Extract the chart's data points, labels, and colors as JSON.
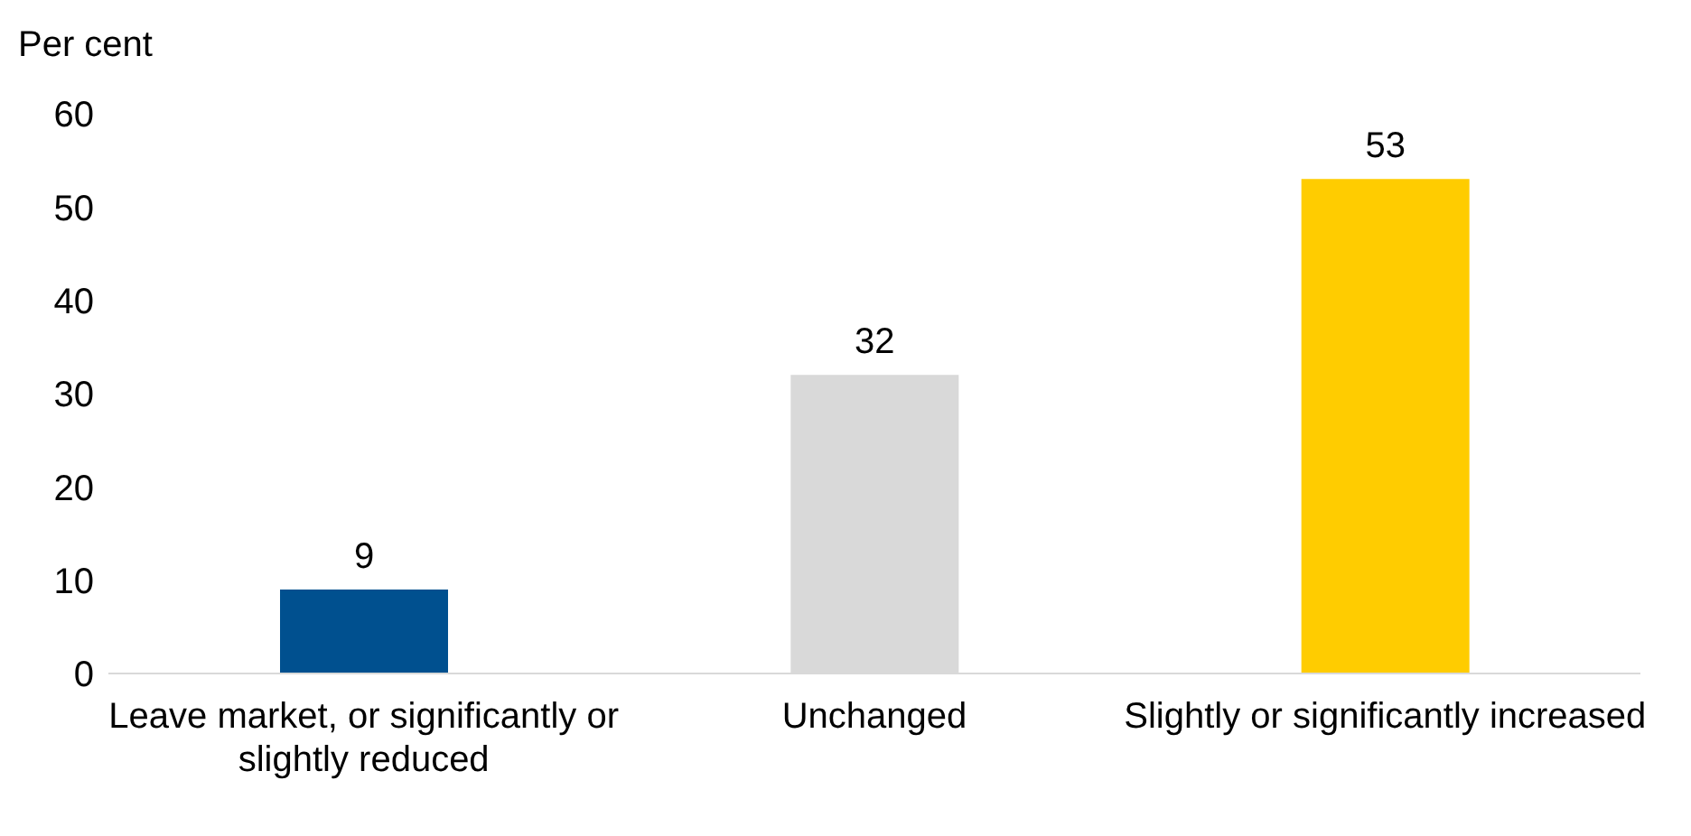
{
  "chart_data": {
    "type": "bar",
    "ylabel": "Per cent",
    "categories": [
      "Leave market, or significantly or slightly reduced",
      "Unchanged",
      "Slightly or significantly increased"
    ],
    "values": [
      9,
      32,
      53
    ],
    "colors": [
      "#00508f",
      "#d9d9d9",
      "#ffcc00"
    ],
    "ylim": [
      0,
      60
    ],
    "yticks": [
      0,
      10,
      20,
      30,
      40,
      50,
      60
    ],
    "data_labels": true
  }
}
